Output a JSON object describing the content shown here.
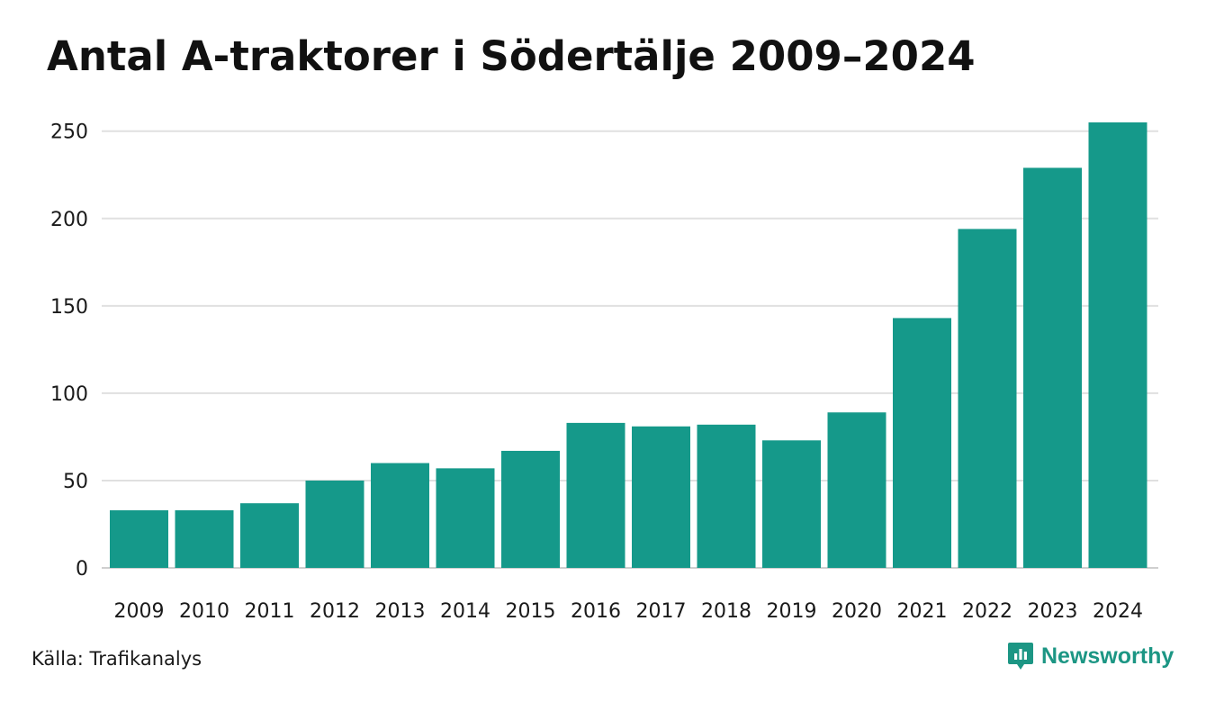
{
  "title": "Antal A-traktorer i Södertälje 2009–2024",
  "source": "Källa: Trafikanalys",
  "brand": {
    "name": "Newsworthy",
    "icon": "newsworthy-logo-icon",
    "color": "#1c9684"
  },
  "colors": {
    "bar": "#15998a",
    "grid": "#e0e0e0",
    "axis": "#cfcfcf",
    "text": "#1a1a1a"
  },
  "chart_data": {
    "type": "bar",
    "title": "Antal A-traktorer i Södertälje 2009–2024",
    "xlabel": "",
    "ylabel": "",
    "categories": [
      "2009",
      "2010",
      "2011",
      "2012",
      "2013",
      "2014",
      "2015",
      "2016",
      "2017",
      "2018",
      "2019",
      "2020",
      "2021",
      "2022",
      "2023",
      "2024"
    ],
    "values": [
      33,
      33,
      37,
      50,
      60,
      57,
      67,
      83,
      81,
      82,
      73,
      89,
      143,
      194,
      229,
      255
    ],
    "ylim": [
      0,
      255
    ],
    "yticks": [
      0,
      50,
      100,
      150,
      200,
      250
    ],
    "grid": true,
    "legend": "none"
  }
}
